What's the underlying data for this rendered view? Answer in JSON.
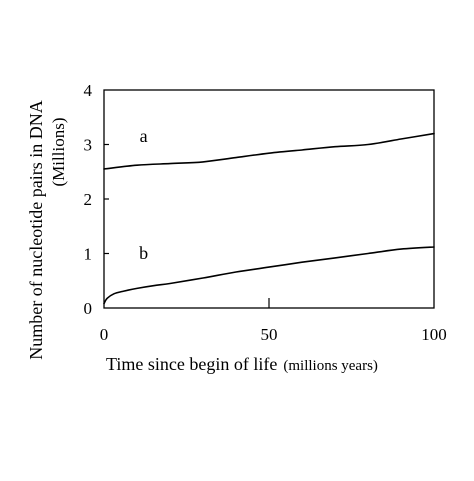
{
  "chart_data": {
    "type": "line",
    "title": "",
    "xlabel_main": "Time since begin of life",
    "xlabel_unit": "(millions years)",
    "ylabel_main": "Number of nucleotide pairs in DNA",
    "ylabel_unit": "(Millions)",
    "xlim": [
      0,
      100
    ],
    "ylim": [
      0,
      4
    ],
    "xticks": [
      0,
      50,
      100
    ],
    "yticks": [
      0,
      1,
      2,
      3,
      4
    ],
    "grid": false,
    "legend": "none",
    "series": [
      {
        "name": "a",
        "x": [
          0,
          10,
          20,
          30,
          40,
          50,
          60,
          70,
          80,
          90,
          100
        ],
        "y": [
          2.55,
          2.62,
          2.65,
          2.68,
          2.76,
          2.84,
          2.9,
          2.96,
          3.0,
          3.1,
          3.2
        ]
      },
      {
        "name": "b",
        "x": [
          0,
          1,
          3,
          6,
          10,
          15,
          20,
          30,
          40,
          50,
          60,
          70,
          80,
          90,
          100
        ],
        "y": [
          0.08,
          0.18,
          0.26,
          0.31,
          0.36,
          0.41,
          0.45,
          0.55,
          0.66,
          0.75,
          0.84,
          0.92,
          1.0,
          1.08,
          1.12
        ]
      }
    ]
  },
  "colors": {
    "line": "#000000",
    "axis": "#000000",
    "background": "#ffffff"
  }
}
